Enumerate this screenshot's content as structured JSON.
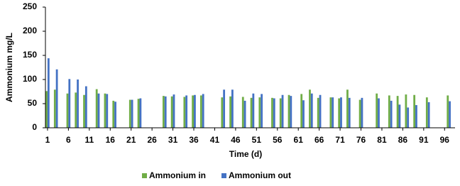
{
  "chart_data": {
    "type": "bar",
    "xlabel": "Time (d)",
    "ylabel": "Ammonium mg/L",
    "x": [
      1,
      3,
      6,
      8,
      10,
      13,
      15,
      17,
      21,
      23,
      29,
      31,
      34,
      36,
      38,
      43,
      45,
      48,
      50,
      52,
      55,
      57,
      59,
      62,
      64,
      66,
      69,
      71,
      73,
      76,
      80,
      83,
      85,
      87,
      89,
      92,
      97
    ],
    "series": [
      {
        "name": "Ammonium in",
        "color": "#70ad47",
        "values": [
          76,
          79,
          71,
          73,
          68,
          80,
          71,
          56,
          58,
          60,
          66,
          65,
          64,
          67,
          67,
          63,
          65,
          64,
          62,
          63,
          62,
          61,
          68,
          70,
          79,
          62,
          63,
          61,
          79,
          58,
          71,
          67,
          66,
          69,
          68,
          63,
          67
        ]
      },
      {
        "name": "Ammonium out",
        "color": "#4472c4",
        "values": [
          144,
          121,
          101,
          100,
          86,
          71,
          70,
          54,
          58,
          61,
          65,
          69,
          67,
          68,
          70,
          79,
          79,
          56,
          71,
          70,
          61,
          68,
          66,
          57,
          71,
          68,
          63,
          63,
          62,
          62,
          61,
          56,
          48,
          42,
          47,
          53,
          55
        ]
      }
    ],
    "xlim": [
      0.5,
      98.5
    ],
    "xticks": [
      1,
      6,
      11,
      16,
      21,
      26,
      31,
      36,
      41,
      46,
      51,
      56,
      61,
      66,
      71,
      76,
      81,
      86,
      91,
      96
    ],
    "ylim": [
      0,
      250
    ],
    "yticks": [
      0,
      50,
      100,
      150,
      200,
      250
    ],
    "legend": "bottom"
  }
}
